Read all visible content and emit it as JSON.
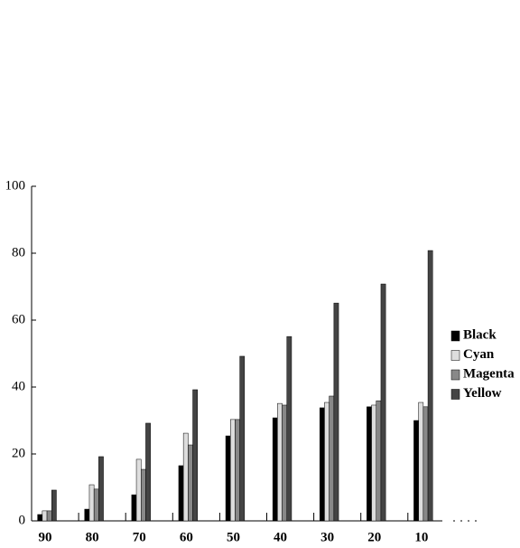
{
  "chart_data": {
    "type": "bar",
    "categories": [
      "90",
      "80",
      "70",
      "60",
      "50",
      "40",
      "30",
      "20",
      "10"
    ],
    "series": [
      {
        "name": "Black",
        "color": "#000000",
        "values": [
          1.9,
          3.5,
          7.8,
          16.5,
          25.4,
          30.8,
          33.8,
          34.1,
          30.0
        ]
      },
      {
        "name": "Cyan",
        "color": "#dddddd",
        "values": [
          3.0,
          10.8,
          18.4,
          26.2,
          30.3,
          35.1,
          35.4,
          34.6,
          35.4
        ]
      },
      {
        "name": "Magenta",
        "color": "#888888",
        "values": [
          3.0,
          9.5,
          15.4,
          22.7,
          30.3,
          34.6,
          37.3,
          35.9,
          34.1
        ]
      },
      {
        "name": "Yellow",
        "color": "#444444",
        "values": [
          9.2,
          19.2,
          29.2,
          39.2,
          49.2,
          55.1,
          65.1,
          70.8,
          80.8
        ]
      }
    ],
    "ylim": [
      0,
      100
    ],
    "yticks": [
      0,
      20,
      40,
      60,
      80,
      100
    ],
    "grid": false,
    "legend": "right"
  }
}
